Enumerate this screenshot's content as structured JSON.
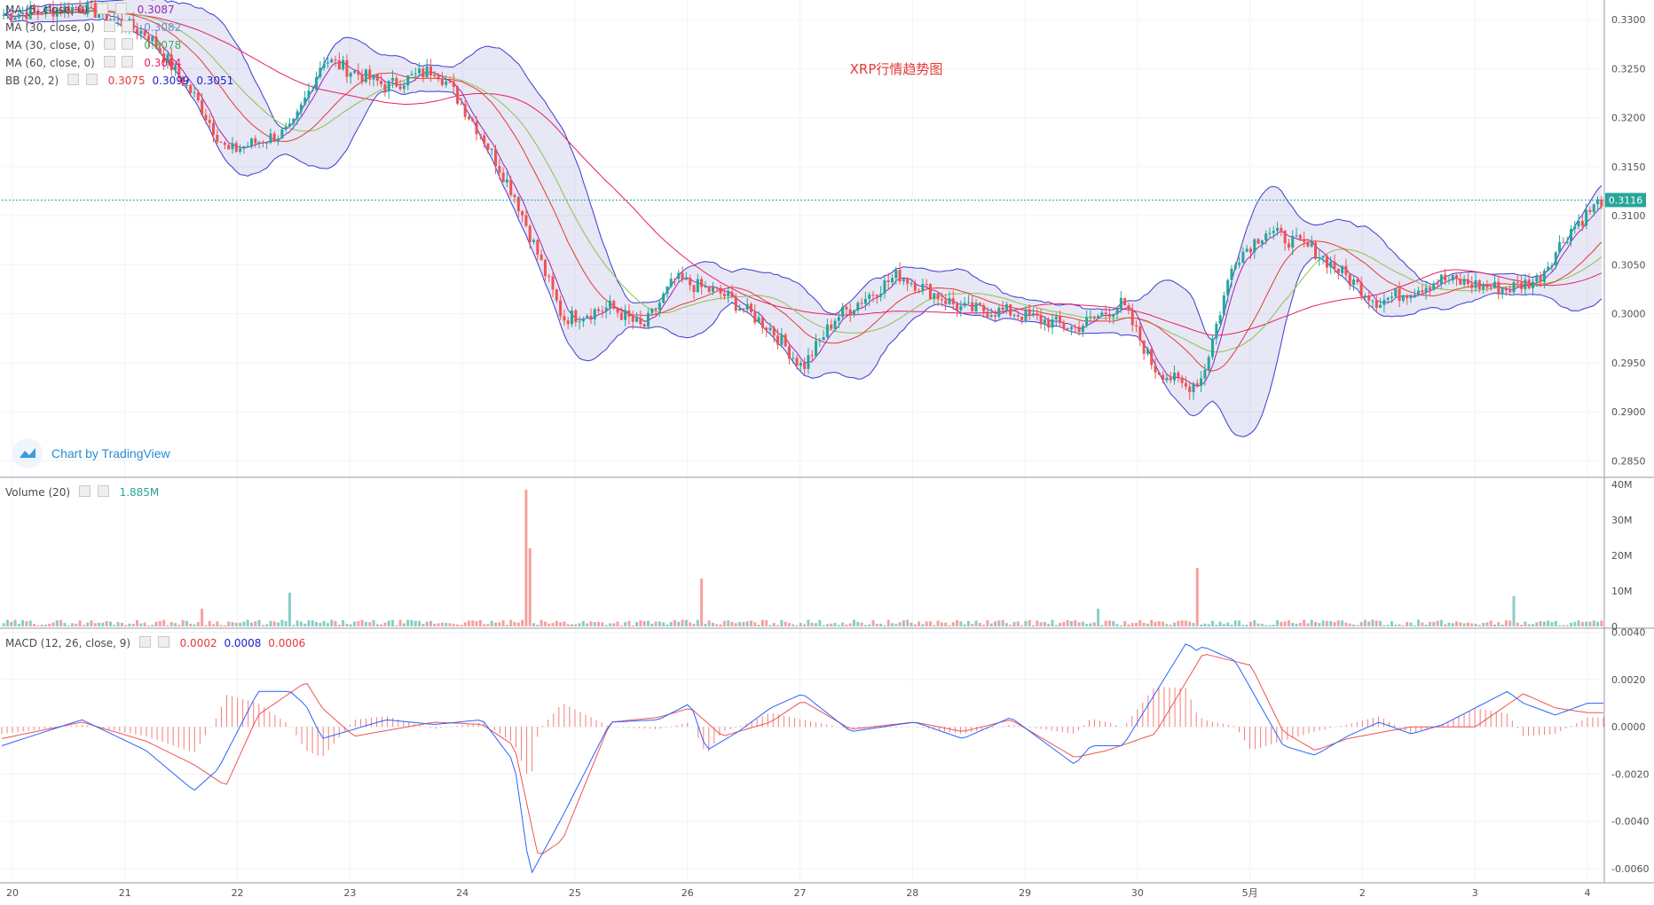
{
  "chart_data": {
    "type": "candlestick",
    "title": "XRP行情趋势图",
    "watermark": "Chart by TradingView",
    "last_price": "0.3116",
    "x_ticks": [
      "20",
      "21",
      "22",
      "23",
      "24",
      "25",
      "26",
      "27",
      "28",
      "29",
      "30",
      "5月",
      "2",
      "3",
      "4"
    ],
    "price_axis": {
      "ticks": [
        "0.3300",
        "0.3250",
        "0.3200",
        "0.3150",
        "0.3100",
        "0.3050",
        "0.3000",
        "0.2950",
        "0.2900",
        "0.2850"
      ],
      "ylim": [
        0.2835,
        0.332
      ]
    },
    "price_indicators": [
      {
        "name": "MA (5, close, 0)",
        "values": [
          "0.3087"
        ],
        "colors": [
          "#9c27b0"
        ]
      },
      {
        "name": "MA (30, close, 0)",
        "values": [
          "0.3082"
        ],
        "colors": [
          "#6f8fc9"
        ]
      },
      {
        "name": "MA (30, close, 0)",
        "values": [
          "0.3078"
        ],
        "colors": [
          "#4caf50"
        ]
      },
      {
        "name": "MA (60, close, 0)",
        "values": [
          "0.3064"
        ],
        "colors": [
          "#e91e63"
        ]
      },
      {
        "name": "BB (20, 2)",
        "values": [
          "0.3075",
          "0.3099",
          "0.3051"
        ],
        "colors": [
          "#e53935",
          "#1e1ecc",
          "#1e1ecc"
        ]
      }
    ],
    "price_key_points": {
      "x": [
        0,
        0.05,
        0.09,
        0.12,
        0.14,
        0.18,
        0.2,
        0.24,
        0.27,
        0.28,
        0.3,
        0.32,
        0.35,
        0.38,
        0.4,
        0.42,
        0.45,
        0.48,
        0.5,
        0.52,
        0.56,
        0.6,
        0.63,
        0.67,
        0.7,
        0.72,
        0.74,
        0.75,
        0.77,
        0.79,
        0.82,
        0.86,
        0.9,
        0.94,
        0.96,
        0.98,
        1.0
      ],
      "y": [
        0.3305,
        0.3313,
        0.3285,
        0.322,
        0.3165,
        0.3187,
        0.326,
        0.3232,
        0.325,
        0.323,
        0.318,
        0.312,
        0.2995,
        0.3007,
        0.2985,
        0.3035,
        0.302,
        0.2985,
        0.2945,
        0.2995,
        0.304,
        0.3005,
        0.3002,
        0.2985,
        0.301,
        0.2945,
        0.2925,
        0.2935,
        0.3055,
        0.3085,
        0.3065,
        0.3012,
        0.3035,
        0.3025,
        0.3035,
        0.3085,
        0.3116
      ]
    },
    "volume": {
      "label": "Volume (20)",
      "value": "1.885M",
      "ticks": [
        "40M",
        "30M",
        "20M",
        "10M",
        "0"
      ],
      "ylim": [
        0,
        40
      ],
      "spikes": [
        {
          "x": 0.327,
          "v": 38.5
        },
        {
          "x": 0.329,
          "v": 22
        },
        {
          "x": 0.436,
          "v": 13.5
        },
        {
          "x": 0.746,
          "v": 16.5
        },
        {
          "x": 0.18,
          "v": 9.5
        },
        {
          "x": 0.946,
          "v": 8.5
        },
        {
          "x": 0.124,
          "v": 5
        },
        {
          "x": 0.684,
          "v": 5
        }
      ]
    },
    "macd": {
      "label": "MACD (12, 26, close, 9)",
      "values": [
        "0.0002",
        "0.0008",
        "0.0006"
      ],
      "ticks": [
        "0.0040",
        "0.0020",
        "0.0000",
        "-0.0020",
        "-0.0040",
        "-0.0060"
      ],
      "ylim": [
        -0.0066,
        0.0041
      ],
      "macd_points": {
        "x": [
          0,
          0.05,
          0.09,
          0.12,
          0.135,
          0.16,
          0.18,
          0.19,
          0.2,
          0.24,
          0.27,
          0.3,
          0.32,
          0.33,
          0.35,
          0.38,
          0.41,
          0.43,
          0.44,
          0.46,
          0.48,
          0.5,
          0.53,
          0.57,
          0.6,
          0.63,
          0.67,
          0.68,
          0.7,
          0.74,
          0.745,
          0.75,
          0.77,
          0.8,
          0.82,
          0.84,
          0.86,
          0.88,
          0.9,
          0.94,
          0.95,
          0.97,
          0.99
        ],
        "y": [
          -0.0008,
          0.0003,
          -0.001,
          -0.0027,
          -0.0018,
          0.0015,
          0.0015,
          0.0009,
          -0.0005,
          0.0003,
          0.0001,
          0.0003,
          -0.0015,
          -0.0063,
          -0.0038,
          0.0002,
          0.0003,
          0.001,
          -0.001,
          -0.0002,
          0.0008,
          0.0014,
          -0.0002,
          0.0002,
          -0.0005,
          0.0004,
          -0.0016,
          -0.0008,
          -0.0008,
          0.0036,
          0.0032,
          0.0034,
          0.0028,
          -0.0008,
          -0.0012,
          -0.0004,
          0.0002,
          -0.0003,
          0.0001,
          0.0015,
          0.001,
          0.0005,
          0.001
        ]
      },
      "signal_points": {
        "x": [
          0,
          0.05,
          0.09,
          0.12,
          0.14,
          0.16,
          0.19,
          0.2,
          0.22,
          0.27,
          0.3,
          0.32,
          0.335,
          0.35,
          0.38,
          0.41,
          0.43,
          0.45,
          0.48,
          0.5,
          0.53,
          0.57,
          0.6,
          0.63,
          0.67,
          0.69,
          0.72,
          0.75,
          0.78,
          0.8,
          0.82,
          0.84,
          0.88,
          0.92,
          0.95,
          0.97,
          0.99
        ],
        "y": [
          -0.0005,
          0.0002,
          -0.0006,
          -0.0016,
          -0.0025,
          0.0005,
          0.0019,
          0.0008,
          -0.0004,
          0.0002,
          0.0001,
          -0.0008,
          -0.0055,
          -0.0048,
          0.0002,
          0.0004,
          0.0008,
          -0.0004,
          0.0002,
          0.0011,
          -0.0001,
          0.0002,
          -0.0002,
          0.0003,
          -0.0013,
          -0.001,
          -0.0003,
          0.0031,
          0.0026,
          -0.0002,
          -0.001,
          -0.0005,
          0.0,
          0.0,
          0.0014,
          0.0008,
          0.0006
        ]
      }
    }
  }
}
